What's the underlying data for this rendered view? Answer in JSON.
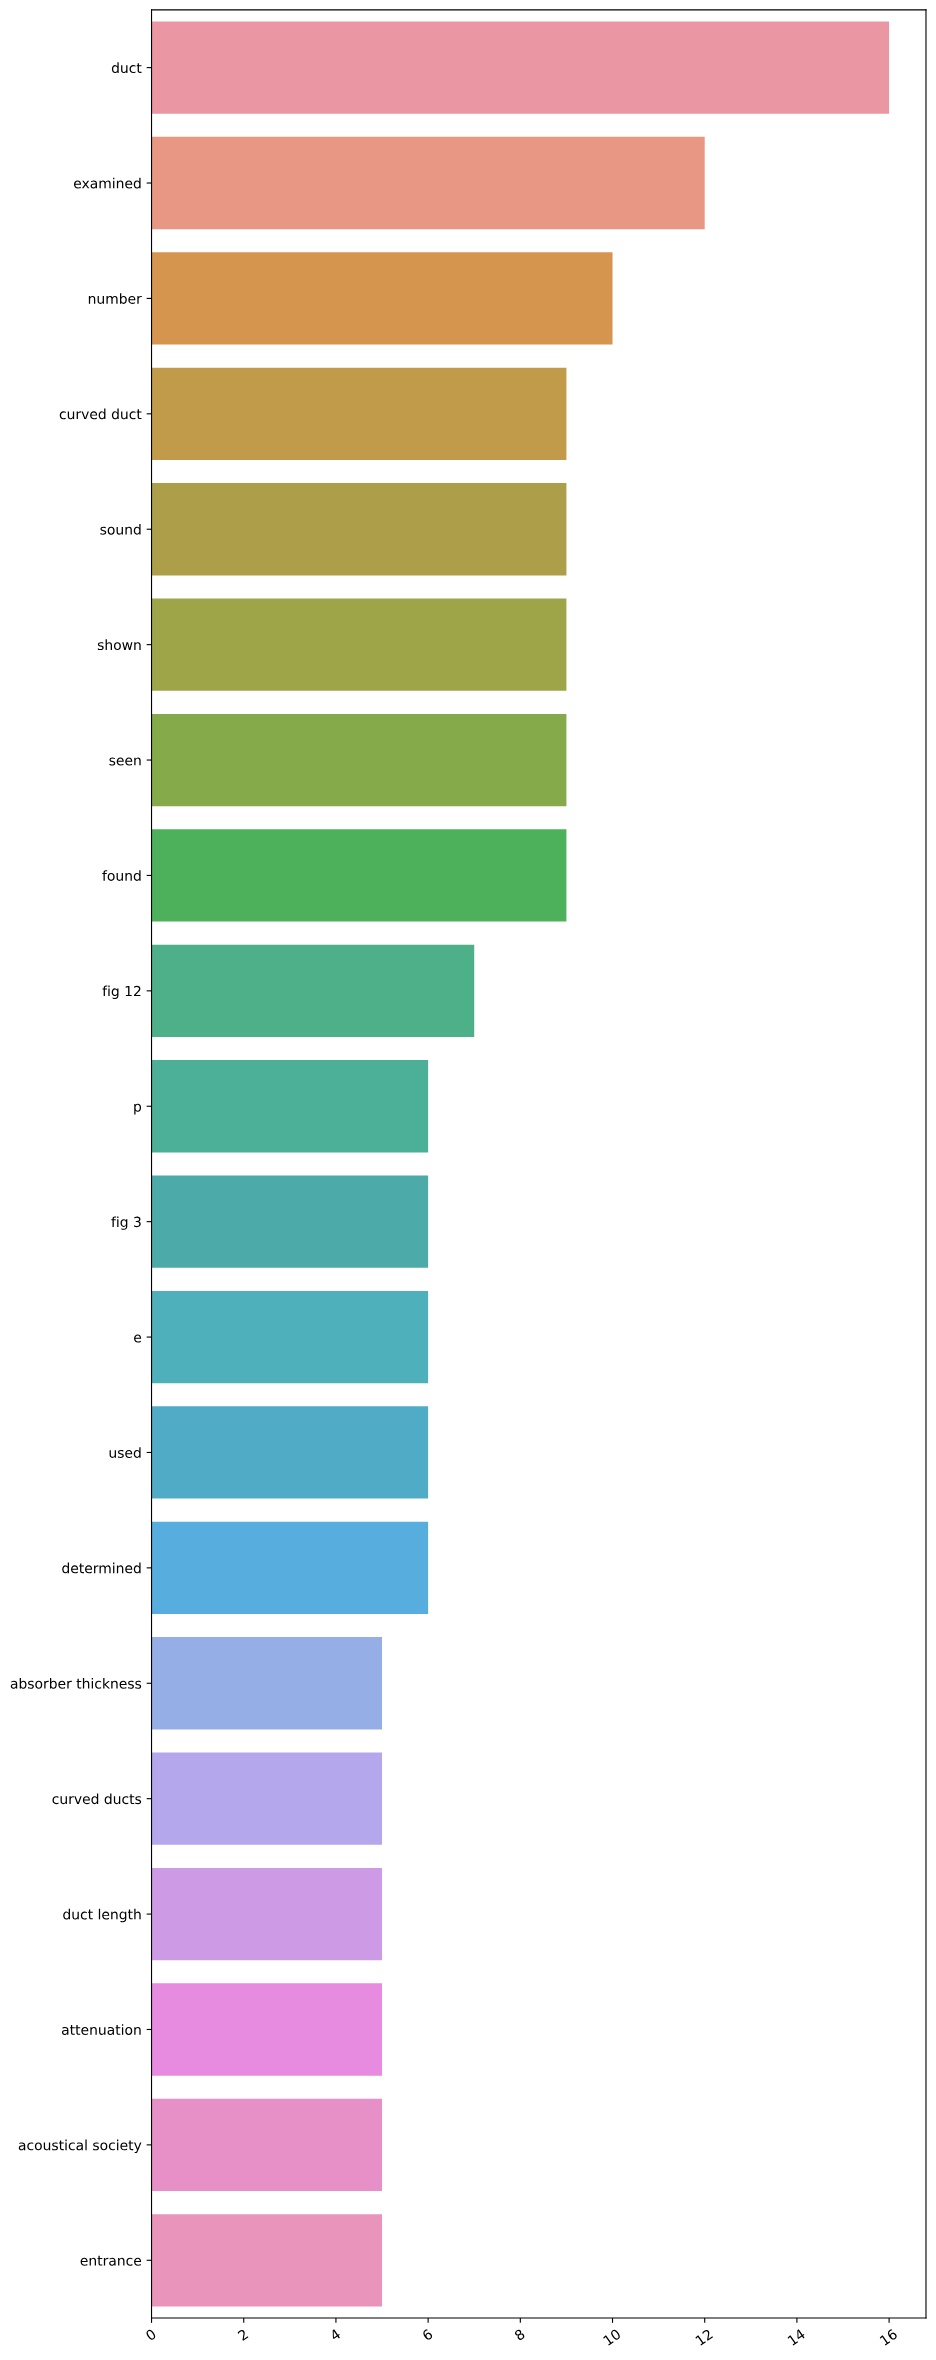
{
  "chart_data": {
    "type": "bar",
    "orientation": "horizontal",
    "categories": [
      "duct",
      "examined",
      "number",
      "curved duct",
      "sound",
      "shown",
      "seen",
      "found",
      "fig 12",
      "p",
      "fig 3",
      "e",
      "used",
      "determined",
      "absorber thickness",
      "curved ducts",
      "duct length",
      "attenuation",
      "acoustical society",
      "entrance"
    ],
    "values": [
      16,
      12,
      10,
      9,
      9,
      9,
      9,
      9,
      7,
      6,
      6,
      6,
      6,
      6,
      5,
      5,
      5,
      5,
      5,
      5
    ],
    "colors": [
      "#ea96a3",
      "#e79784",
      "#d6954e",
      "#c19b4a",
      "#ad9f4a",
      "#9ea548",
      "#84aa4a",
      "#4db05a",
      "#4db088",
      "#4caf98",
      "#4caaa8",
      "#4eb0ba",
      "#50abc6",
      "#57aede",
      "#96aee6",
      "#b4a7ec",
      "#cd9be6",
      "#e68be0",
      "#e78fc7",
      "#e994bb"
    ],
    "xlim": [
      0,
      16.8
    ],
    "xticks": [
      0,
      2,
      4,
      6,
      8,
      10,
      12,
      14,
      16
    ]
  }
}
